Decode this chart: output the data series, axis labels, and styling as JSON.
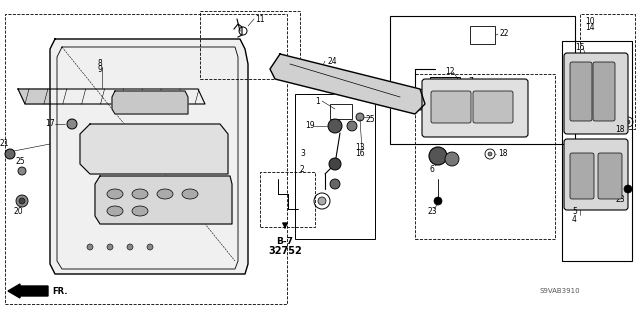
{
  "bg_color": "#ffffff",
  "line_color": "#000000",
  "fig_width": 6.4,
  "fig_height": 3.19,
  "dpi": 100,
  "watermark": "S9VAB3910",
  "ref_b7": "B-7",
  "ref_32752": "32752"
}
